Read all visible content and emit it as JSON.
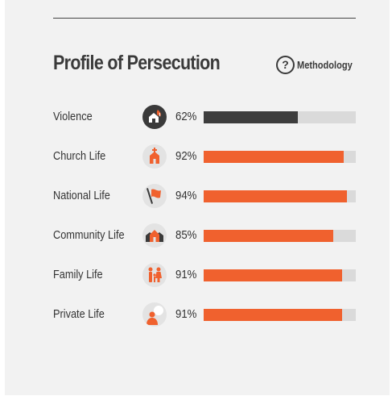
{
  "header": {
    "title": "Profile of Persecution",
    "methodology_label": "Methodology"
  },
  "colors": {
    "accent": "#f0612e",
    "dark": "#3d3d3d",
    "track": "#dadada"
  },
  "rows": [
    {
      "label": "Violence",
      "value": 62,
      "pct_text": "62%",
      "icon": "violence-icon",
      "dark": true
    },
    {
      "label": "Church Life",
      "value": 92,
      "pct_text": "92%",
      "icon": "church-icon",
      "dark": false
    },
    {
      "label": "National Life",
      "value": 94,
      "pct_text": "94%",
      "icon": "flag-icon",
      "dark": false
    },
    {
      "label": "Community Life",
      "value": 85,
      "pct_text": "85%",
      "icon": "community-icon",
      "dark": false
    },
    {
      "label": "Family Life",
      "value": 91,
      "pct_text": "91%",
      "icon": "family-icon",
      "dark": false
    },
    {
      "label": "Private Life",
      "value": 91,
      "pct_text": "91%",
      "icon": "private-person-icon",
      "dark": false
    }
  ]
}
